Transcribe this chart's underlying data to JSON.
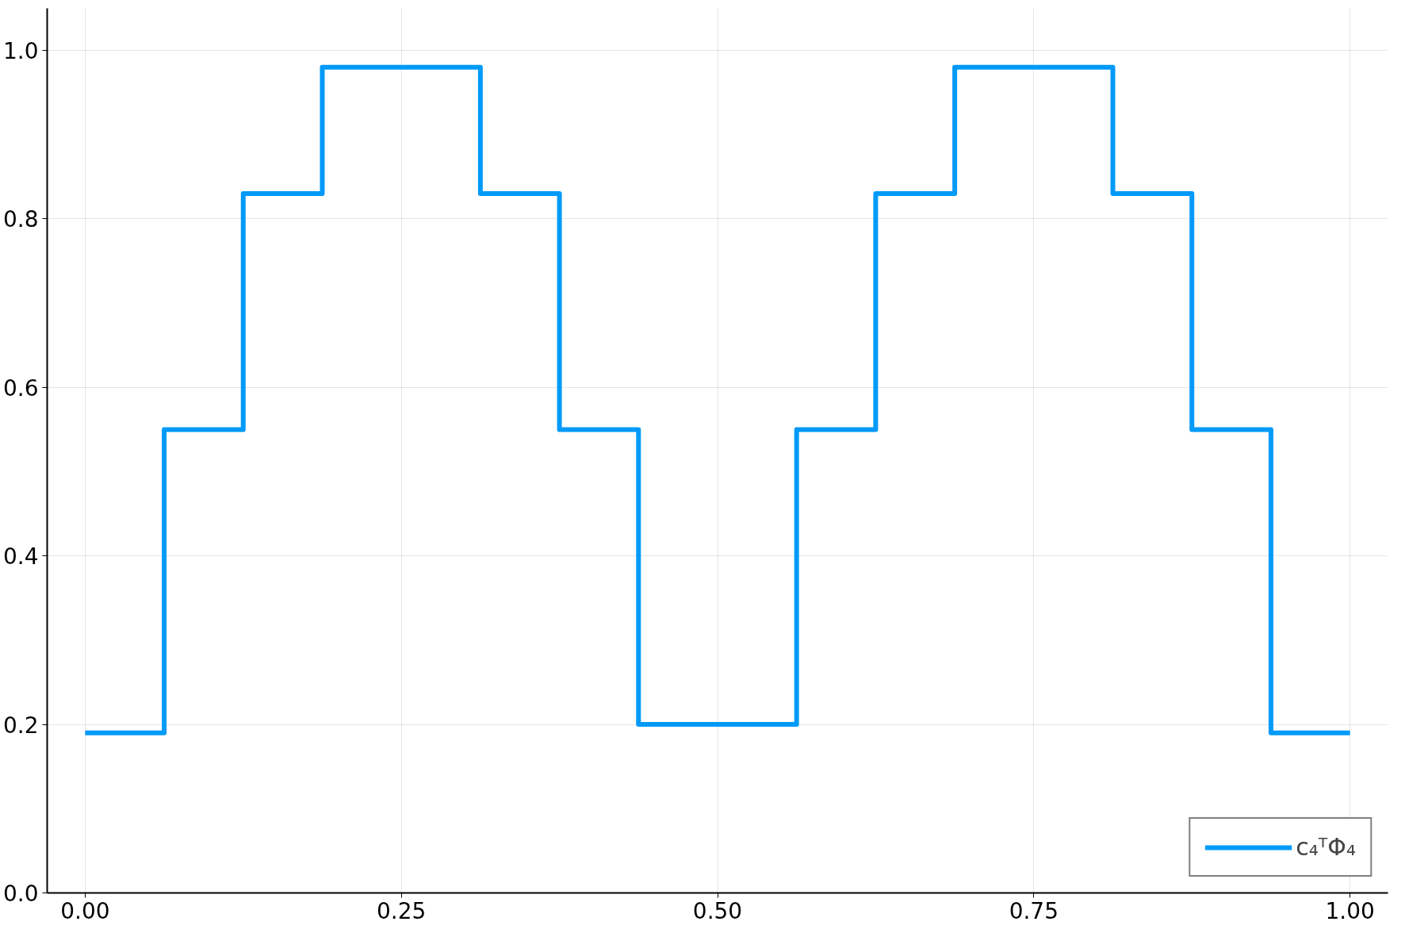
{
  "chart_data": {
    "type": "step",
    "x": [
      0,
      0.0625,
      0.125,
      0.1875,
      0.25,
      0.3125,
      0.375,
      0.4375,
      0.5,
      0.5625,
      0.625,
      0.6875,
      0.75,
      0.8125,
      0.875,
      0.9375,
      1.0
    ],
    "series": [
      {
        "name": "c₄ᵀΦ₄",
        "color": "#009af9",
        "values": [
          0.19,
          0.55,
          0.83,
          0.98,
          0.98,
          0.83,
          0.55,
          0.2,
          0.2,
          0.55,
          0.83,
          0.98,
          0.98,
          0.83,
          0.55,
          0.19,
          0.19
        ]
      }
    ],
    "xlim": [
      -0.03,
      1.03
    ],
    "ylim": [
      0,
      1.05
    ],
    "xticks": [
      {
        "value": 0,
        "label": "0.00"
      },
      0.25,
      {
        "value": 0.5,
        "label": "0.50"
      },
      0.75,
      {
        "value": 1,
        "label": "1.00"
      }
    ],
    "yticks": [
      {
        "value": 0,
        "label": "0.0"
      },
      0.2,
      0.4,
      0.6,
      0.8,
      {
        "value": 1,
        "label": "1.0"
      }
    ],
    "grid": true,
    "legend": "bottom right",
    "line_style": "solid"
  }
}
